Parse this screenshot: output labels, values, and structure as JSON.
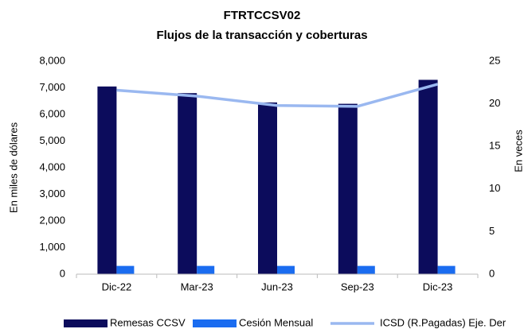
{
  "chart_data": {
    "type": "bar-line",
    "title": "FTRTCCSV02",
    "subtitle": "Flujos de la transacción  y coberturas",
    "ylabel": "En miles de dólares",
    "y2label": "En veces",
    "categories": [
      "Dic-22",
      "Mar-23",
      "Jun-23",
      "Sep-23",
      "Dic-23"
    ],
    "series": [
      {
        "name": "Remesas  CCSV",
        "color": "#0c0c5c",
        "kind": "bar",
        "values": [
          7050,
          6800,
          6450,
          6400,
          7300
        ]
      },
      {
        "name": "Cesión Mensual",
        "color": "#1a6cf0",
        "kind": "bar",
        "values": [
          310,
          310,
          310,
          310,
          310
        ]
      },
      {
        "name": "ICSD (R.Pagadas) Eje. Der",
        "color": "#9ab8f0",
        "kind": "line",
        "axis": "y2",
        "values": [
          21.6,
          20.9,
          19.8,
          19.7,
          22.3
        ]
      }
    ],
    "ylim": [
      0,
      8000
    ],
    "yticks": [
      0,
      {
        "value": 1000,
        "label": "1,000"
      },
      {
        "value": 2000,
        "label": "2,000"
      },
      {
        "value": 3000,
        "label": "3,000"
      },
      {
        "value": 4000,
        "label": "4,000"
      },
      {
        "value": 5000,
        "label": "5,000"
      },
      {
        "value": 6000,
        "label": "6,000"
      },
      {
        "value": 7000,
        "label": "7,000"
      },
      {
        "value": 8000,
        "label": "8,000"
      }
    ],
    "y2lim": [
      0,
      25
    ],
    "y2ticks": [
      0,
      5,
      10,
      15,
      20,
      25
    ],
    "legend": "bottom"
  }
}
